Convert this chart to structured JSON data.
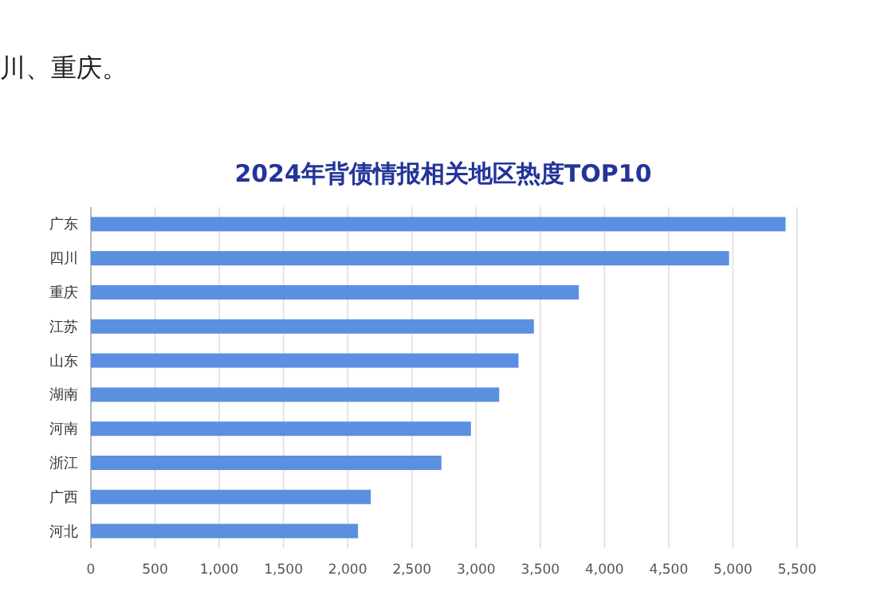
{
  "chart_data": {
    "type": "bar",
    "orientation": "horizontal",
    "title": "2024年背债情报相关地区热度TOP10",
    "annotations": [
      "川、重庆。"
    ],
    "categories": [
      "广东",
      "四川",
      "重庆",
      "江苏",
      "山东",
      "湖南",
      "河南",
      "浙江",
      "广西",
      "河北"
    ],
    "values": [
      5410,
      4970,
      3800,
      3450,
      3330,
      3180,
      2960,
      2730,
      2180,
      2080
    ],
    "color": "#5b8fe0",
    "xlim": [
      0,
      5500
    ],
    "xticks": [
      {
        "value": 0,
        "label": "0"
      },
      {
        "value": 500,
        "label": "500"
      },
      {
        "value": 1000,
        "label": "1,000"
      },
      {
        "value": 1500,
        "label": "1,500"
      },
      {
        "value": 2000,
        "label": "2,000"
      },
      {
        "value": 2500,
        "label": "2,500"
      },
      {
        "value": 3000,
        "label": "3,000"
      },
      {
        "value": 3500,
        "label": "3,500"
      },
      {
        "value": 4000,
        "label": "4,000"
      },
      {
        "value": 4500,
        "label": "4,500"
      },
      {
        "value": 5000,
        "label": "5,000"
      },
      {
        "value": 5500,
        "label": "5,500"
      }
    ],
    "grid": "x"
  }
}
